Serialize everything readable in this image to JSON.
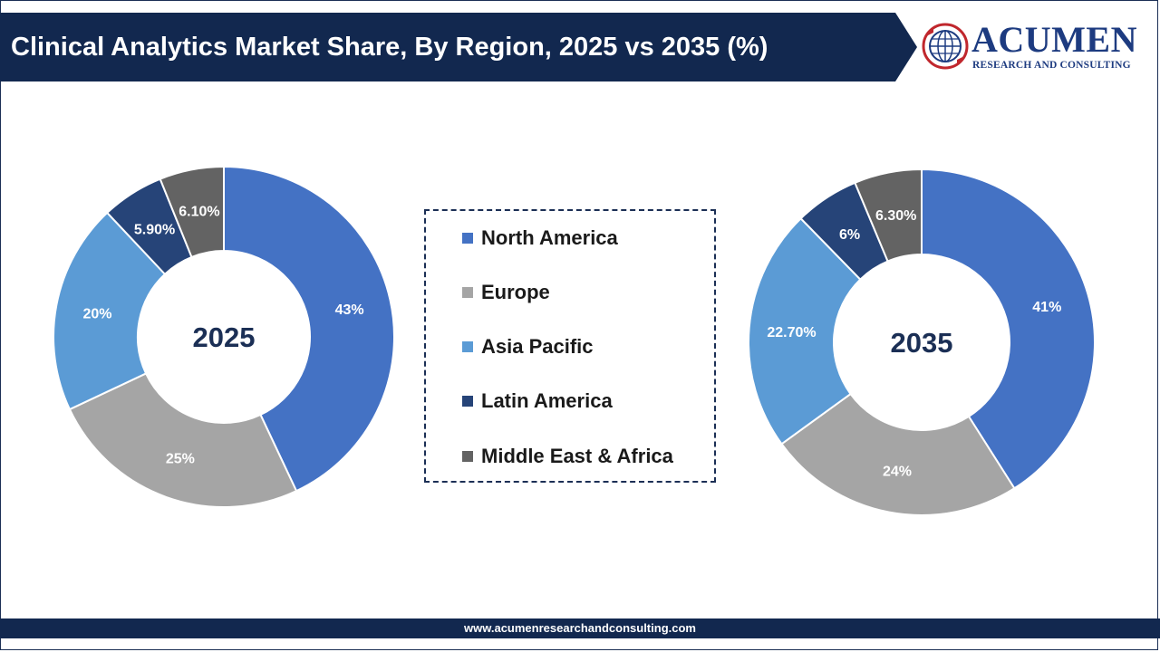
{
  "header": {
    "title": "Clinical Analytics Market Share, By Region, 2025 vs 2035 (%)",
    "logo_name": "ACUMEN",
    "logo_tagline": "RESEARCH AND CONSULTING"
  },
  "footer": {
    "url": "www.acumenresearchandconsulting.com"
  },
  "colors": {
    "header_bg": "#12284f",
    "North America": "#4472c4",
    "Europe": "#a5a5a5",
    "Asia Pacific": "#5b9bd5",
    "Latin America": "#264478",
    "Middle East & Africa": "#636363"
  },
  "legend": {
    "items": [
      "North America",
      "Europe",
      "Asia Pacific",
      "Latin America",
      "Middle East & Africa"
    ]
  },
  "chart_data": [
    {
      "type": "pie",
      "title": "2025",
      "categories": [
        "North America",
        "Europe",
        "Asia Pacific",
        "Latin America",
        "Middle East & Africa"
      ],
      "values": [
        43,
        25,
        20,
        5.9,
        6.1
      ],
      "labels": [
        "43%",
        "25%",
        "20%",
        "5.90%",
        "6.10%"
      ]
    },
    {
      "type": "pie",
      "title": "2035",
      "categories": [
        "North America",
        "Europe",
        "Asia Pacific",
        "Latin America",
        "Middle East & Africa"
      ],
      "values": [
        41,
        24,
        22.7,
        6,
        6.3
      ],
      "labels": [
        "41%",
        "24%",
        "22.70%",
        "6%",
        "6.30%"
      ]
    }
  ]
}
